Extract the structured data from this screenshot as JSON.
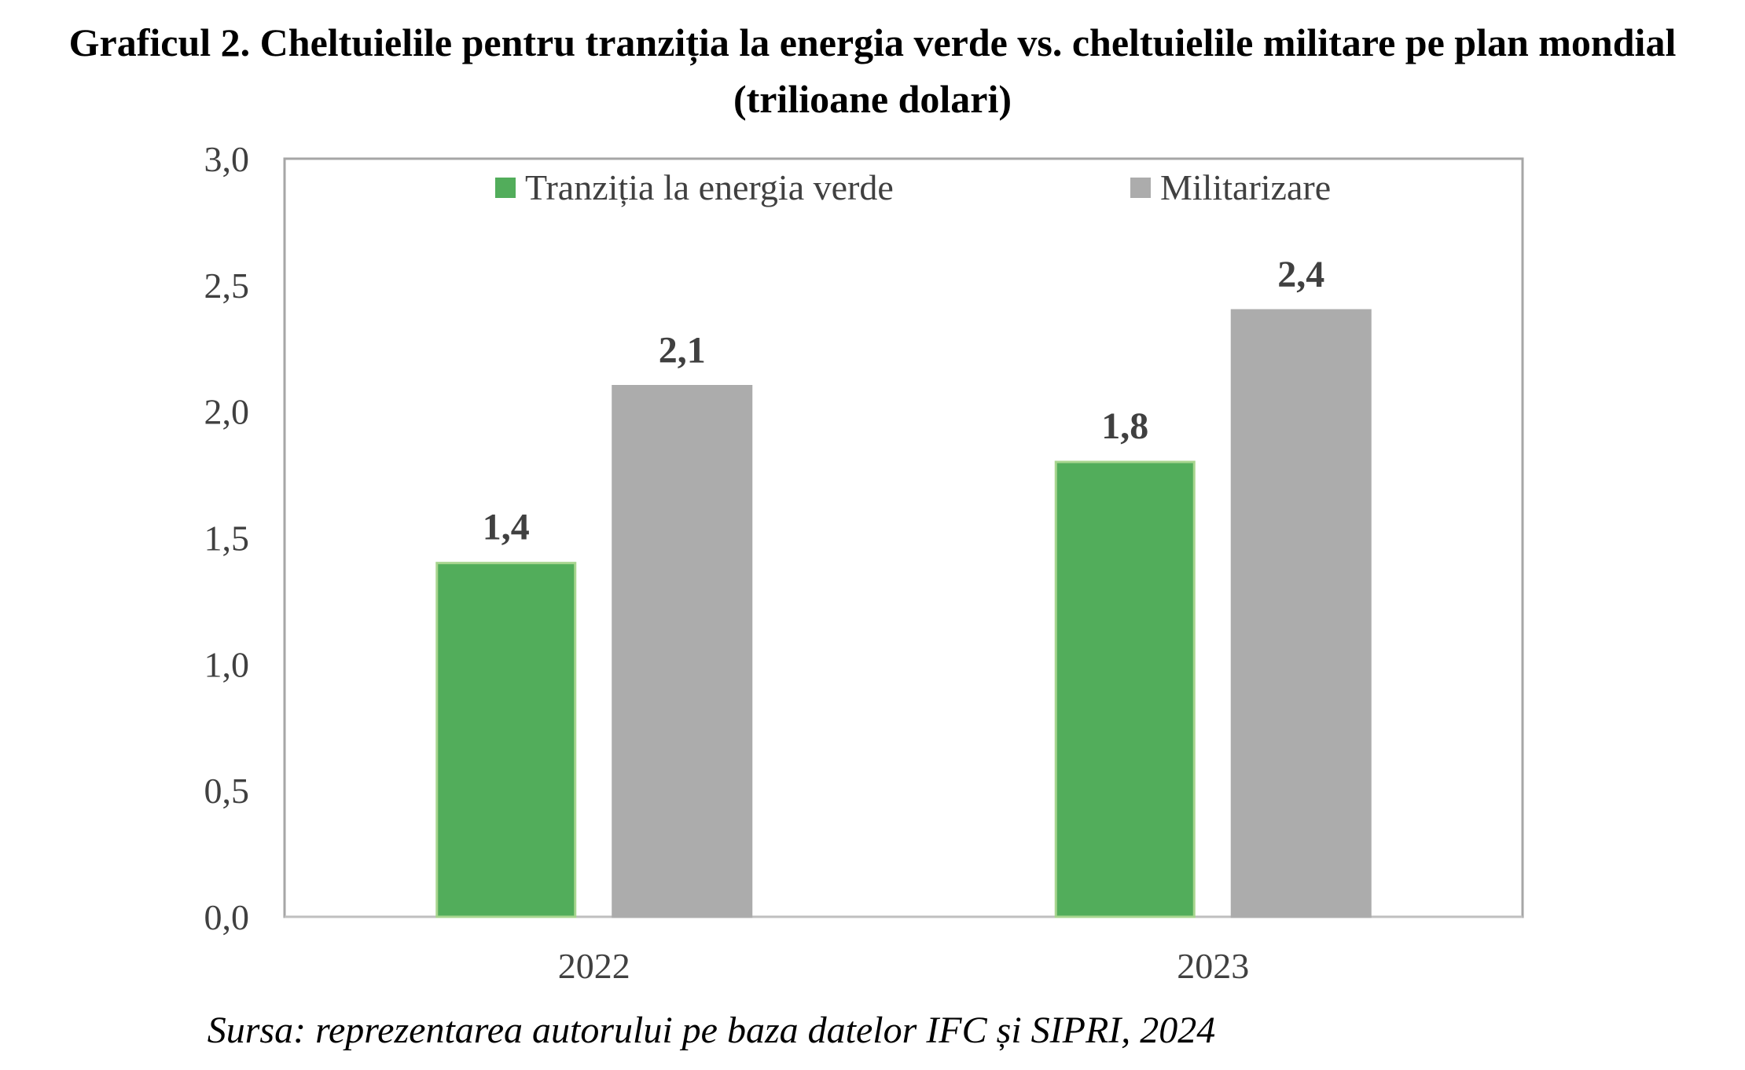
{
  "title": "Graficul 2. Cheltuielile pentru tranziția la energia verde vs. cheltuielile militare pe plan mondial (trilioane dolari)",
  "source": "Sursa: reprezentarea autorului pe baza datelor IFC și SIPRI, 2024",
  "chart_data": {
    "type": "bar",
    "title": "Graficul 2. Cheltuielile pentru tranziția la energia verde vs. cheltuielile militare pe plan mondial (trilioane dolari)",
    "categories": [
      "2022",
      "2023"
    ],
    "series": [
      {
        "name": "Tranziția la energia verde",
        "values": [
          1.4,
          1.8
        ],
        "labels": [
          "1,4",
          "1,8"
        ],
        "color": "#52ad5b",
        "border_color": "#a8d58f"
      },
      {
        "name": "Militarizare",
        "values": [
          2.1,
          2.4
        ],
        "labels": [
          "2,1",
          "2,4"
        ],
        "color": "#acacac",
        "border_color": "#acacac"
      }
    ],
    "ylim": [
      0,
      3
    ],
    "y_ticks": [
      0,
      0.5,
      1,
      1.5,
      2,
      2.5,
      3
    ],
    "y_tick_labels": [
      "0,0",
      "0,5",
      "1,0",
      "1,5",
      "2,0",
      "2,5",
      "3,0"
    ],
    "xlabel": "",
    "ylabel": "",
    "grid": false,
    "legend_position": "top",
    "frame_color": "#a6a6a6",
    "axis_color": "#bfbfbf"
  }
}
